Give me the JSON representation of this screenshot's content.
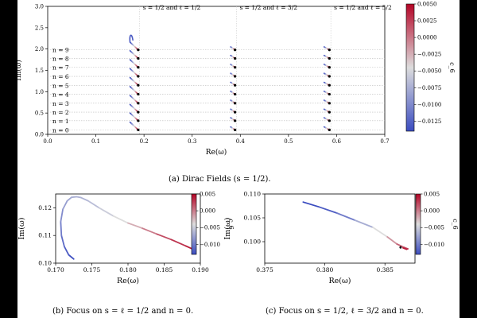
{
  "figure": {
    "colorbar_label": "c_6",
    "captions": {
      "a": "(a) Dirac Fields (s = 1/2).",
      "b": "(b) Focus on s = ℓ = 1/2 and n = 0.",
      "c": "(c) Focus on s = 1/2, ℓ = 3/2 and n = 0."
    }
  },
  "chart_data": [
    {
      "id": "a",
      "type": "scatter",
      "xlabel": "Re(ω)",
      "ylabel": "Im(ω)",
      "xlim": [
        0.0,
        0.7
      ],
      "ylim": [
        0.0,
        3.0
      ],
      "xticks": [
        "0.0",
        "0.1",
        "0.2",
        "0.3",
        "0.4",
        "0.5",
        "0.6",
        "0.7"
      ],
      "yticks": [
        "0.0",
        "0.5",
        "1.0",
        "1.5",
        "2.0",
        "2.5",
        "3.0"
      ],
      "overtone_labels": [
        "n = 0",
        "n = 1",
        "n = 2",
        "n = 3",
        "n = 4",
        "n = 5",
        "n = 6",
        "n = 7",
        "n = 8",
        "n = 9"
      ],
      "overtone_im": [
        0.105,
        0.32,
        0.52,
        0.73,
        0.94,
        1.15,
        1.36,
        1.57,
        1.78,
        1.98
      ],
      "group_labels": [
        "s = 1/2 and ℓ = 1/2",
        "s = 1/2 and ℓ = 3/2",
        "s = 1/2 and ℓ = 5/2"
      ],
      "groups": [
        {
          "re_start": 0.171,
          "re_end": 0.188,
          "im_lift": 0.18,
          "top_curl": true
        },
        {
          "re_start": 0.38,
          "re_end": 0.389,
          "im_lift": 0.07,
          "top_curl": false
        },
        {
          "re_start": 0.574,
          "re_end": 0.585,
          "im_lift": 0.07,
          "top_curl": false
        }
      ],
      "colorbar": {
        "min": -0.014,
        "max": 0.005,
        "ticks": [
          "0.0050",
          "0.0025",
          "0.0000",
          "−0.0025",
          "−0.0050",
          "−0.0075",
          "−0.0100",
          "−0.0125"
        ]
      }
    },
    {
      "id": "b",
      "type": "line",
      "xlabel": "Re(ω)",
      "ylabel": "Im(ω)",
      "xlim": [
        0.17,
        0.19
      ],
      "ylim": [
        0.1,
        0.125
      ],
      "xticks": [
        "0.170",
        "0.175",
        "0.180",
        "0.185",
        "0.190"
      ],
      "yticks": [
        "0.10",
        "0.11",
        "0.12"
      ],
      "x": [
        0.1725,
        0.1718,
        0.1712,
        0.1708,
        0.1707,
        0.171,
        0.1716,
        0.1722,
        0.1729,
        0.1735,
        0.1745,
        0.176,
        0.178,
        0.18,
        0.182,
        0.184,
        0.186,
        0.188,
        0.189
      ],
      "y": [
        0.1015,
        0.103,
        0.106,
        0.11,
        0.115,
        0.1195,
        0.1225,
        0.1238,
        0.124,
        0.1237,
        0.1225,
        0.12,
        0.117,
        0.1145,
        0.1126,
        0.1105,
        0.1085,
        0.1062,
        0.105
      ],
      "c": [
        -0.013,
        -0.012,
        -0.011,
        -0.01,
        -0.009,
        -0.008,
        -0.0075,
        -0.007,
        -0.0068,
        -0.0066,
        -0.006,
        -0.005,
        -0.004,
        -0.002,
        0.0,
        0.002,
        0.003,
        0.004,
        0.005
      ],
      "colorbar": {
        "min": -0.013,
        "max": 0.005,
        "ticks": [
          "0.005",
          "0.000",
          "−0.005",
          "−0.010"
        ]
      }
    },
    {
      "id": "c",
      "type": "line",
      "xlabel": "Re(ω)",
      "ylabel": "Im(ω)",
      "xlim": [
        0.375,
        0.3875
      ],
      "ylim": [
        0.0955,
        0.11
      ],
      "xticks": [
        "0.375",
        "0.380",
        "0.385"
      ],
      "yticks": [
        "0.100",
        "0.105",
        "0.110"
      ],
      "x": [
        0.3782,
        0.3795,
        0.381,
        0.3825,
        0.384,
        0.3852,
        0.386,
        0.3866,
        0.3869,
        0.3868,
        0.3865
      ],
      "y": [
        0.1083,
        0.1073,
        0.106,
        0.1045,
        0.103,
        0.101,
        0.0995,
        0.0988,
        0.0985,
        0.0984,
        0.0987
      ],
      "c": [
        -0.013,
        -0.012,
        -0.01,
        -0.007,
        -0.004,
        -0.001,
        0.001,
        0.002,
        0.003,
        0.004,
        0.005
      ],
      "colorbar": {
        "min": -0.013,
        "max": 0.005,
        "ticks": [
          "0.005",
          "0.000",
          "−0.005",
          "−0.010"
        ]
      }
    }
  ]
}
